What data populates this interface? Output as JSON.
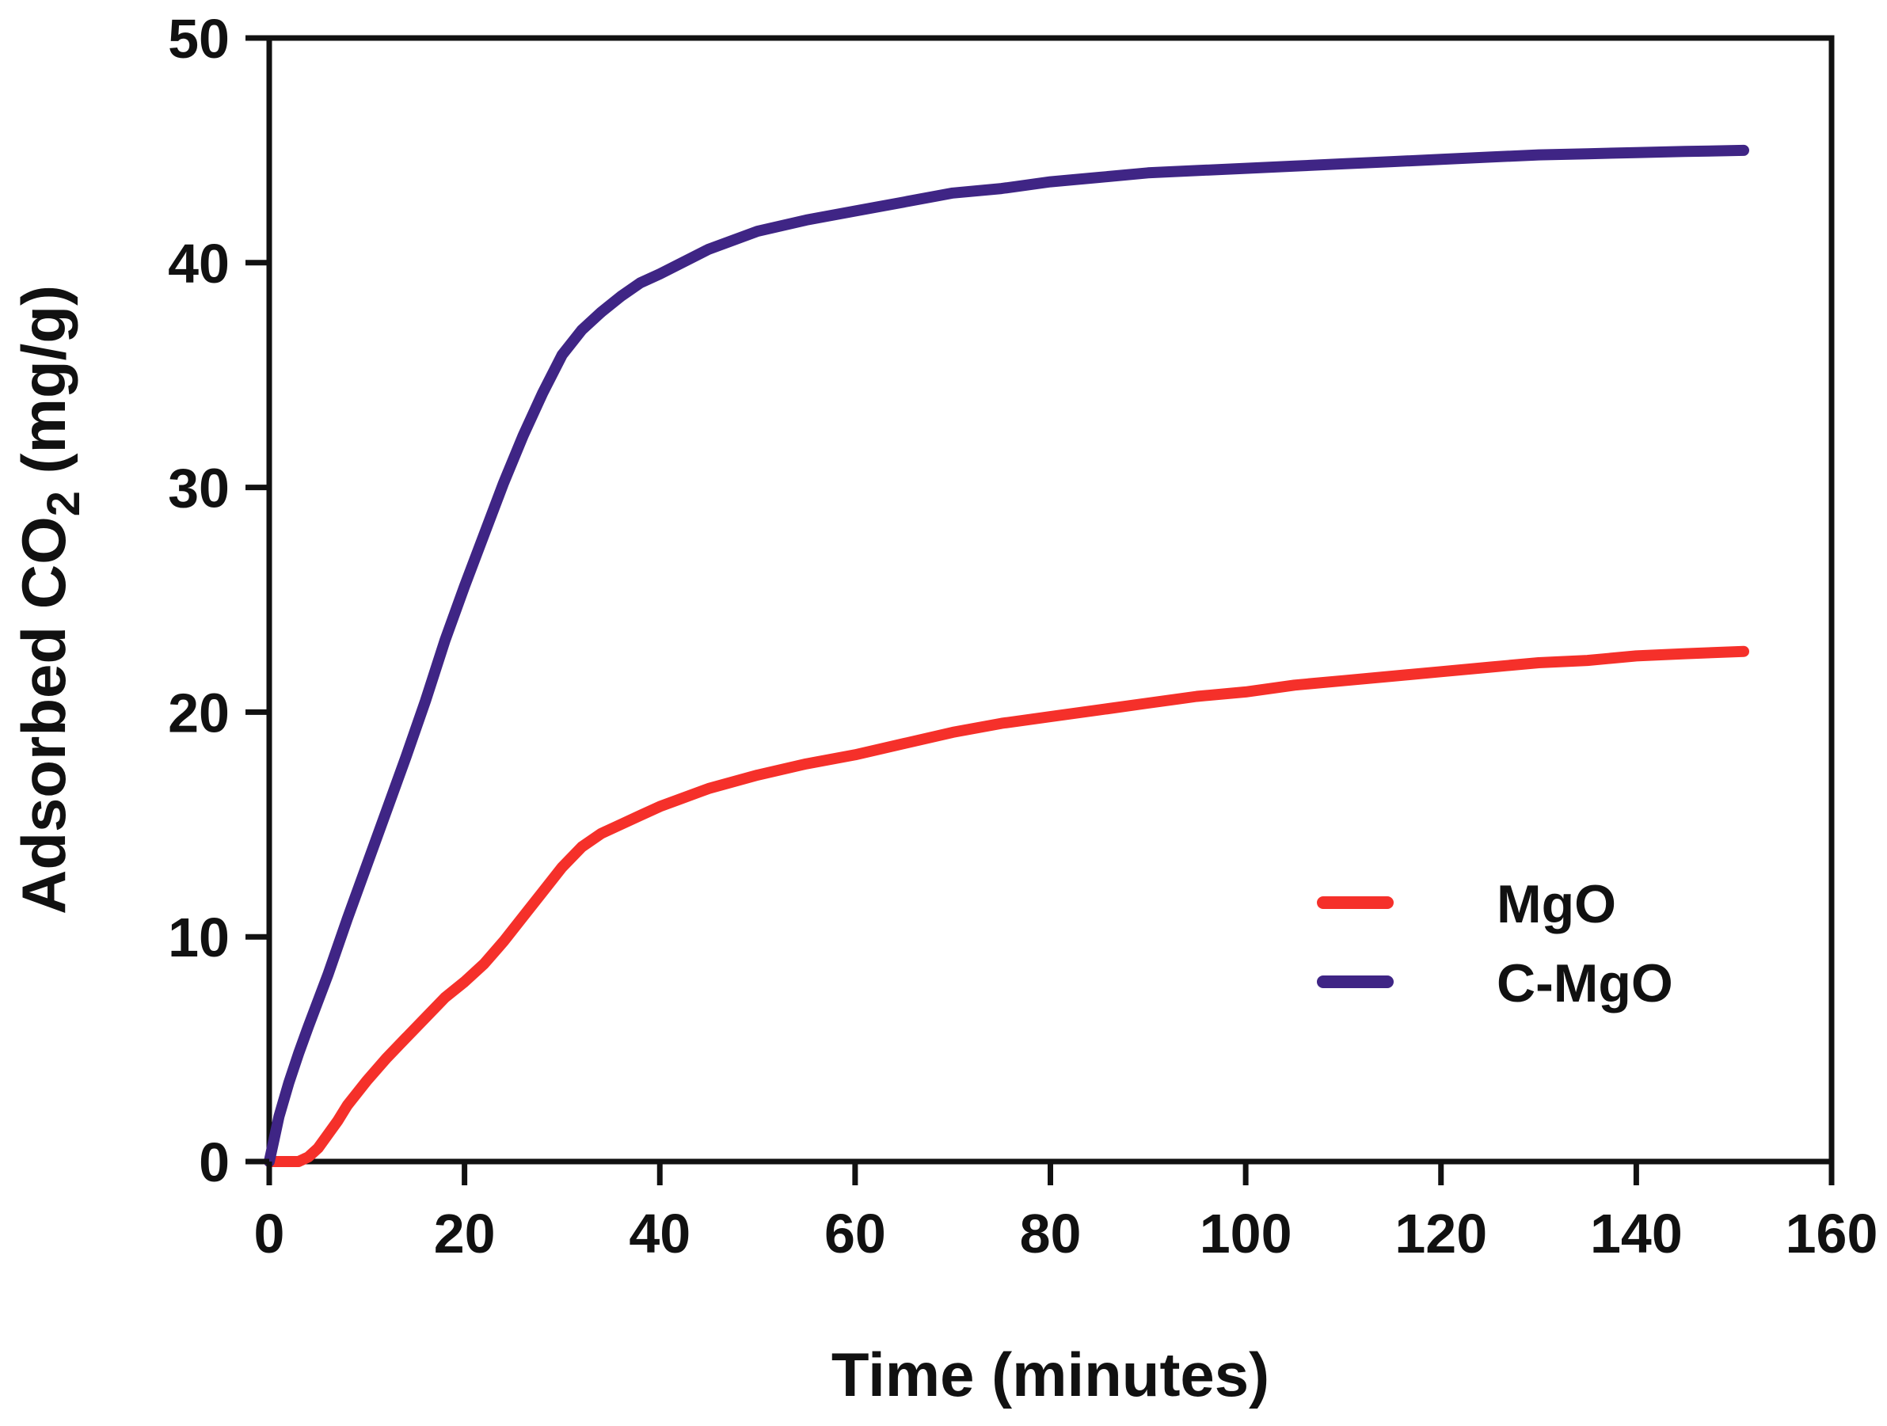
{
  "chart_data": {
    "type": "line",
    "title": "",
    "xlabel": "Time (minutes)",
    "ylabel_main": "Adsorbed CO",
    "ylabel_sub": "2",
    "ylabel_unit": " (mg/g)",
    "xlim": [
      0,
      160
    ],
    "ylim": [
      0,
      50
    ],
    "xticks": [
      0,
      20,
      40,
      60,
      80,
      100,
      120,
      140,
      160
    ],
    "yticks": [
      0,
      10,
      20,
      30,
      40,
      50
    ],
    "xtick_labels": [
      "0",
      "20",
      "40",
      "60",
      "80",
      "100",
      "120",
      "140",
      "160"
    ],
    "ytick_labels": [
      "0",
      "10",
      "20",
      "30",
      "40",
      "50"
    ],
    "grid": false,
    "legend_position": "lower-right",
    "series": [
      {
        "name": "MgO",
        "color": "#f5302a",
        "points": [
          [
            0,
            0
          ],
          [
            1,
            0
          ],
          [
            2,
            0
          ],
          [
            3,
            0
          ],
          [
            4,
            0.2
          ],
          [
            5,
            0.6
          ],
          [
            6,
            1.2
          ],
          [
            7,
            1.8
          ],
          [
            8,
            2.5
          ],
          [
            10,
            3.6
          ],
          [
            12,
            4.6
          ],
          [
            14,
            5.5
          ],
          [
            16,
            6.4
          ],
          [
            18,
            7.3
          ],
          [
            20,
            8.0
          ],
          [
            22,
            8.8
          ],
          [
            24,
            9.8
          ],
          [
            26,
            10.9
          ],
          [
            28,
            12.0
          ],
          [
            30,
            13.1
          ],
          [
            32,
            14.0
          ],
          [
            34,
            14.6
          ],
          [
            36,
            15.0
          ],
          [
            38,
            15.4
          ],
          [
            40,
            15.8
          ],
          [
            45,
            16.6
          ],
          [
            50,
            17.2
          ],
          [
            55,
            17.7
          ],
          [
            60,
            18.1
          ],
          [
            65,
            18.6
          ],
          [
            70,
            19.1
          ],
          [
            75,
            19.5
          ],
          [
            80,
            19.8
          ],
          [
            85,
            20.1
          ],
          [
            90,
            20.4
          ],
          [
            95,
            20.7
          ],
          [
            100,
            20.9
          ],
          [
            105,
            21.2
          ],
          [
            110,
            21.4
          ],
          [
            115,
            21.6
          ],
          [
            120,
            21.8
          ],
          [
            125,
            22.0
          ],
          [
            130,
            22.2
          ],
          [
            135,
            22.3
          ],
          [
            140,
            22.5
          ],
          [
            145,
            22.6
          ],
          [
            151,
            22.7
          ]
        ]
      },
      {
        "name": "C-MgO",
        "color": "#3f2585",
        "points": [
          [
            0,
            0
          ],
          [
            0.5,
            1.0
          ],
          [
            1,
            2.0
          ],
          [
            2,
            3.5
          ],
          [
            3,
            4.8
          ],
          [
            4,
            6.0
          ],
          [
            6,
            8.3
          ],
          [
            8,
            10.8
          ],
          [
            10,
            13.2
          ],
          [
            12,
            15.6
          ],
          [
            14,
            18.0
          ],
          [
            16,
            20.5
          ],
          [
            18,
            23.2
          ],
          [
            20,
            25.6
          ],
          [
            22,
            27.9
          ],
          [
            24,
            30.2
          ],
          [
            26,
            32.3
          ],
          [
            28,
            34.2
          ],
          [
            30,
            35.9
          ],
          [
            32,
            37.0
          ],
          [
            34,
            37.8
          ],
          [
            36,
            38.5
          ],
          [
            38,
            39.1
          ],
          [
            40,
            39.5
          ],
          [
            45,
            40.6
          ],
          [
            50,
            41.4
          ],
          [
            55,
            41.9
          ],
          [
            60,
            42.3
          ],
          [
            65,
            42.7
          ],
          [
            70,
            43.1
          ],
          [
            75,
            43.3
          ],
          [
            80,
            43.6
          ],
          [
            85,
            43.8
          ],
          [
            90,
            44.0
          ],
          [
            95,
            44.1
          ],
          [
            100,
            44.2
          ],
          [
            105,
            44.3
          ],
          [
            110,
            44.4
          ],
          [
            115,
            44.5
          ],
          [
            120,
            44.6
          ],
          [
            125,
            44.7
          ],
          [
            130,
            44.8
          ],
          [
            135,
            44.85
          ],
          [
            140,
            44.9
          ],
          [
            145,
            44.95
          ],
          [
            151,
            45.0
          ]
        ]
      }
    ]
  }
}
